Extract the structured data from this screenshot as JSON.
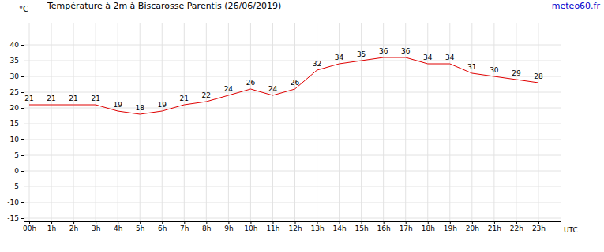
{
  "chart_data": {
    "type": "line",
    "title": "Température à 2m à Biscarosse Parentis (26/06/2019)",
    "source": "meteo60.fr",
    "y_label": "°C",
    "x_label": "UTC",
    "x": [
      0,
      1,
      2,
      3,
      4,
      5,
      6,
      7,
      8,
      9,
      10,
      11,
      12,
      13,
      14,
      15,
      16,
      17,
      18,
      19,
      20,
      21,
      22,
      23
    ],
    "values": [
      21,
      21,
      21,
      21,
      19,
      18,
      19,
      21,
      22,
      24,
      26,
      24,
      26,
      32,
      34,
      35,
      36,
      36,
      34,
      34,
      31,
      30,
      29,
      28
    ],
    "color": "#e00000",
    "data_labels": true,
    "grid": true,
    "xlim": [
      -0.25,
      24
    ],
    "xticks": [
      {
        "value": 0,
        "label": "00h"
      },
      {
        "value": 1,
        "label": "1h"
      },
      {
        "value": 2,
        "label": "2h"
      },
      {
        "value": 3,
        "label": "3h"
      },
      {
        "value": 4,
        "label": "4h"
      },
      {
        "value": 5,
        "label": "5h"
      },
      {
        "value": 6,
        "label": "6h"
      },
      {
        "value": 7,
        "label": "7h"
      },
      {
        "value": 8,
        "label": "8h"
      },
      {
        "value": 9,
        "label": "9h"
      },
      {
        "value": 10,
        "label": "10h"
      },
      {
        "value": 11,
        "label": "11h"
      },
      {
        "value": 12,
        "label": "12h"
      },
      {
        "value": 13,
        "label": "13h"
      },
      {
        "value": 14,
        "label": "14h"
      },
      {
        "value": 15,
        "label": "15h"
      },
      {
        "value": 16,
        "label": "16h"
      },
      {
        "value": 17,
        "label": "17h"
      },
      {
        "value": 18,
        "label": "18h"
      },
      {
        "value": 19,
        "label": "19h"
      },
      {
        "value": 20,
        "label": "20h"
      },
      {
        "value": 21,
        "label": "21h"
      },
      {
        "value": 22,
        "label": "22h"
      },
      {
        "value": 23,
        "label": "23h"
      }
    ],
    "ylim": [
      -16,
      47
    ],
    "yticks": [
      -15,
      -10,
      -5,
      0,
      5,
      10,
      15,
      20,
      25,
      30,
      35,
      40
    ]
  }
}
